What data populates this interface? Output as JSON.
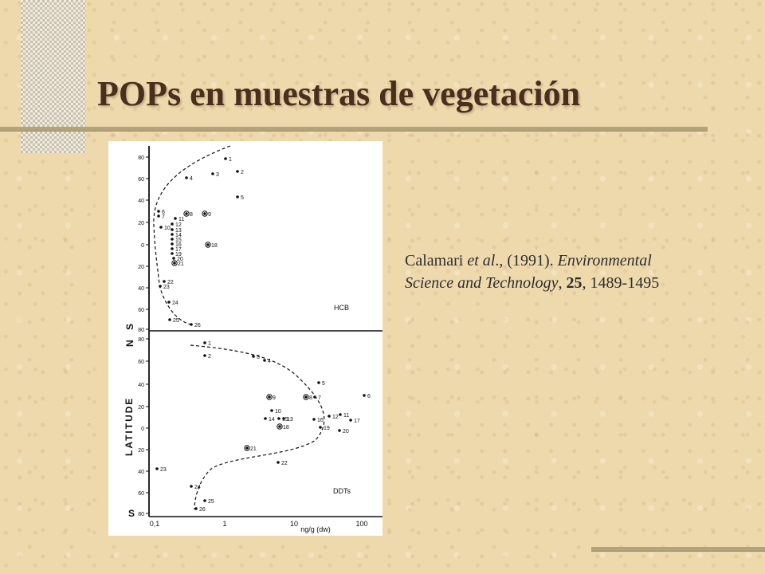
{
  "slide": {
    "title": "POPs en muestras de vegetación"
  },
  "citation": {
    "authors": "Calamari",
    "etal": "et al",
    "year_part": "., (1991).",
    "journal_line1": "Environmental",
    "journal_line2": "Science and Technology",
    "volume": "25",
    "pages": "1489-1495"
  },
  "figure": {
    "axis_title": "LATITUDE",
    "x_axis_label": "ng/g (dw)",
    "x_ticks": [
      "0,1",
      "1",
      "10",
      "100"
    ],
    "north_label": "N",
    "south_label": "S",
    "top_panel": {
      "label": "HCB",
      "y_ticks": [
        "80",
        "60",
        "40",
        "20",
        "0",
        "20",
        "40",
        "60",
        "80"
      ],
      "point_labels": [
        "1",
        "2",
        "3",
        "4",
        "5",
        "6",
        "7",
        "8",
        "9",
        "10",
        "11",
        "12",
        "13",
        "14",
        "15",
        "16",
        "17",
        "18",
        "19",
        "20",
        "21",
        "22",
        "23",
        "24",
        "25",
        "26"
      ]
    },
    "bottom_panel": {
      "label": "DDTs",
      "y_ticks": [
        "80",
        "60",
        "40",
        "20",
        "0",
        "20",
        "40",
        "60",
        "80"
      ],
      "point_labels": [
        "1",
        "2",
        "3",
        "4",
        "5",
        "6",
        "7",
        "8",
        "9",
        "10",
        "11",
        "12",
        "13",
        "14",
        "15",
        "16",
        "17",
        "18",
        "19",
        "20",
        "21",
        "22",
        "23",
        "24",
        "25",
        "26"
      ]
    }
  },
  "colors": {
    "background": "#eed9ad",
    "title": "#4a2e1e",
    "accent_rule": "#b3a37b",
    "text": "#2d2d2d"
  }
}
